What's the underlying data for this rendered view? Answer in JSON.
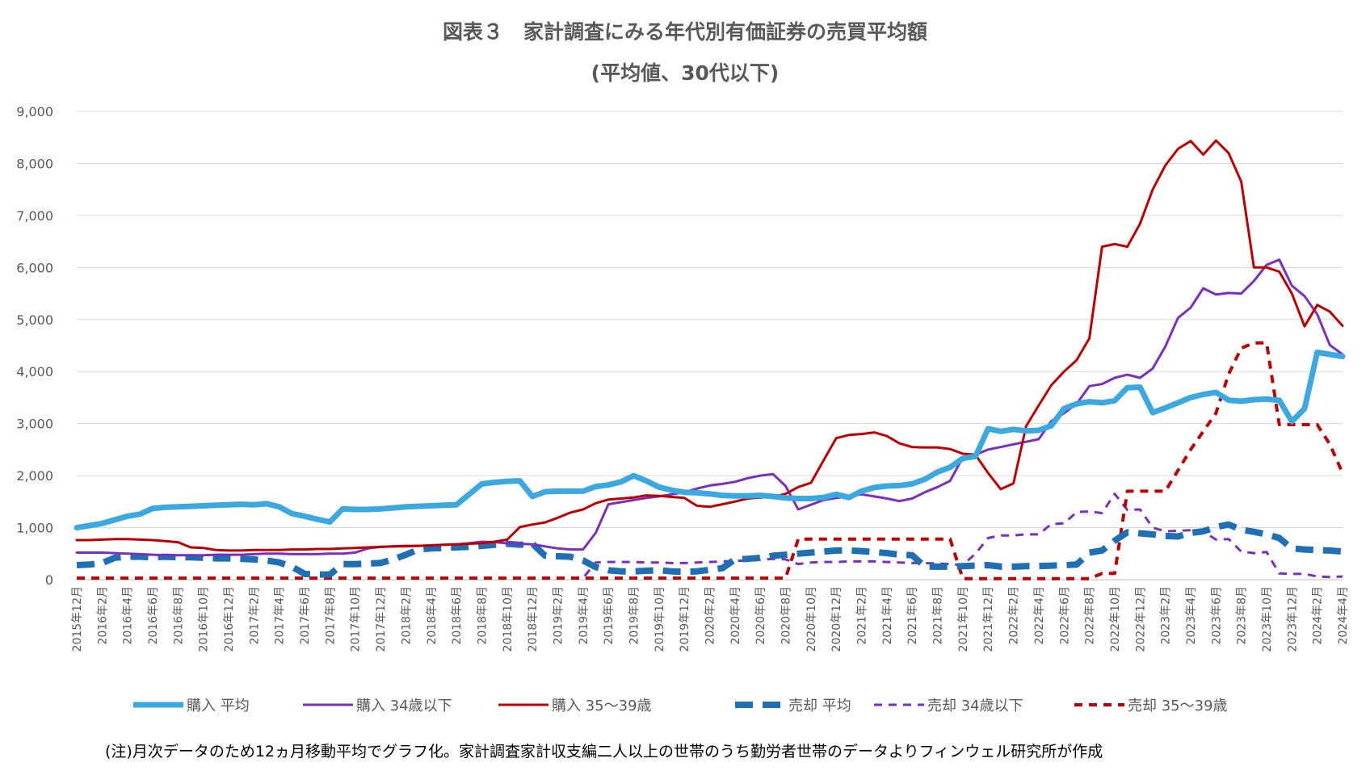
{
  "chart_data": {
    "type": "line",
    "title": "図表３　家計調査にみる年代別有価証券の売買平均額",
    "subtitle": "(平均値、30代以下)",
    "note": "(注)月次データのため12ヵ月移動平均でグラフ化。家計調査家計収支編二人以上の世帯のうち勤労者世帯のデータよりフィンウェル研究所が作成",
    "ylim": [
      0,
      9000
    ],
    "y_ticks": [
      "0",
      "1,000",
      "2,000",
      "3,000",
      "4,000",
      "5,000",
      "6,000",
      "7,000",
      "8,000",
      "9,000"
    ],
    "grid": true,
    "legend_position": "bottom",
    "x_tick_labels": [
      "2015年12月",
      "2016年2月",
      "2016年4月",
      "2016年6月",
      "2016年8月",
      "2016年10月",
      "2016年12月",
      "2017年2月",
      "2017年4月",
      "2017年6月",
      "2017年8月",
      "2017年10月",
      "2017年12月",
      "2018年2月",
      "2018年4月",
      "2018年6月",
      "2018年8月",
      "2018年10月",
      "2018年12月",
      "2019年2月",
      "2019年4月",
      "2019年6月",
      "2019年8月",
      "2019年10月",
      "2019年12月",
      "2020年2月",
      "2020年4月",
      "2020年6月",
      "2020年8月",
      "2020年10月",
      "2020年12月",
      "2021年2月",
      "2021年4月",
      "2021年6月",
      "2021年8月",
      "2021年10月",
      "2021年12月",
      "2022年2月",
      "2022年4月",
      "2022年6月",
      "2022年8月",
      "2022年10月",
      "2022年12月",
      "2023年2月",
      "2023年4月",
      "2023年6月",
      "2023年8月",
      "2023年10月",
      "2023年12月",
      "2024年2月",
      "2024年4月"
    ],
    "x_months_total": 101,
    "series": [
      {
        "name": "購入 平均",
        "color": "#3ba8e0",
        "width": 7,
        "dash": "",
        "values": [
          1000,
          1040,
          1080,
          1150,
          1220,
          1260,
          1370,
          1390,
          1400,
          1410,
          1420,
          1430,
          1440,
          1450,
          1440,
          1460,
          1400,
          1270,
          1220,
          1160,
          1110,
          1360,
          1350,
          1350,
          1360,
          1380,
          1400,
          1410,
          1420,
          1430,
          1440,
          1640,
          1840,
          1870,
          1890,
          1900,
          1600,
          1690,
          1700,
          1700,
          1700,
          1790,
          1820,
          1880,
          2000,
          1900,
          1780,
          1720,
          1680,
          1670,
          1650,
          1620,
          1610,
          1610,
          1620,
          1600,
          1570,
          1560,
          1560,
          1580,
          1640,
          1580,
          1700,
          1770,
          1800,
          1810,
          1840,
          1930,
          2070,
          2160,
          2330,
          2370,
          2900,
          2850,
          2890,
          2860,
          2870,
          2960,
          3290,
          3380,
          3420,
          3400,
          3440,
          3690,
          3700,
          3210,
          3300,
          3400,
          3500,
          3560,
          3600,
          3450,
          3430,
          3460,
          3470,
          3450,
          3040,
          3290,
          4370,
          4330,
          4290
        ]
      },
      {
        "name": "購入 34歳以下",
        "color": "#7b2fbe",
        "width": 3,
        "dash": "",
        "values": [
          520,
          520,
          520,
          510,
          500,
          490,
          480,
          470,
          470,
          470,
          470,
          480,
          480,
          480,
          490,
          500,
          500,
          490,
          490,
          490,
          500,
          500,
          520,
          600,
          630,
          640,
          640,
          650,
          660,
          670,
          680,
          700,
          730,
          720,
          700,
          690,
          680,
          640,
          600,
          580,
          580,
          900,
          1450,
          1490,
          1530,
          1570,
          1600,
          1640,
          1680,
          1750,
          1810,
          1840,
          1880,
          1950,
          2000,
          2030,
          1800,
          1350,
          1440,
          1530,
          1570,
          1600,
          1640,
          1600,
          1560,
          1510,
          1560,
          1680,
          1780,
          1900,
          2350,
          2400,
          2500,
          2550,
          2600,
          2650,
          2700,
          3050,
          3200,
          3380,
          3720,
          3760,
          3880,
          3940,
          3880,
          4060,
          4480,
          5030,
          5230,
          5600,
          5480,
          5510,
          5500,
          5740,
          6050,
          6150,
          5650,
          5450,
          5100,
          4510,
          4330
        ]
      },
      {
        "name": "購入 35～39歳",
        "color": "#c00000",
        "width": 3,
        "dash": "",
        "values": [
          760,
          760,
          770,
          780,
          780,
          770,
          760,
          740,
          720,
          620,
          610,
          570,
          560,
          560,
          570,
          570,
          570,
          580,
          580,
          590,
          590,
          600,
          610,
          620,
          630,
          640,
          650,
          650,
          660,
          670,
          680,
          690,
          700,
          730,
          770,
          1010,
          1060,
          1100,
          1190,
          1290,
          1350,
          1470,
          1540,
          1560,
          1580,
          1620,
          1610,
          1590,
          1570,
          1420,
          1400,
          1450,
          1500,
          1560,
          1580,
          1590,
          1650,
          1780,
          1860,
          2290,
          2720,
          2780,
          2800,
          2830,
          2760,
          2620,
          2550,
          2540,
          2540,
          2510,
          2420,
          2400,
          2050,
          1740,
          1850,
          2950,
          3350,
          3740,
          4000,
          4220,
          4640,
          6400,
          6450,
          6400,
          6840,
          7500,
          7960,
          8280,
          8430,
          8170,
          8440,
          8200,
          7650,
          6000,
          6000,
          5920,
          5500,
          4870,
          5280,
          5150,
          4880
        ]
      },
      {
        "name": "売却 平均",
        "color": "#1f6fb5",
        "width": 8,
        "dash": "22,12",
        "values": [
          280,
          290,
          320,
          420,
          440,
          440,
          430,
          440,
          430,
          430,
          420,
          410,
          410,
          400,
          390,
          370,
          330,
          250,
          110,
          100,
          100,
          300,
          300,
          310,
          320,
          390,
          480,
          580,
          600,
          610,
          620,
          630,
          650,
          670,
          690,
          670,
          690,
          460,
          450,
          440,
          370,
          240,
          180,
          160,
          160,
          170,
          180,
          160,
          150,
          160,
          190,
          220,
          390,
          400,
          420,
          460,
          480,
          500,
          520,
          540,
          560,
          560,
          550,
          530,
          510,
          480,
          470,
          250,
          250,
          250,
          260,
          270,
          280,
          250,
          250,
          260,
          260,
          270,
          280,
          290,
          520,
          560,
          750,
          910,
          890,
          870,
          840,
          830,
          900,
          930,
          1010,
          1060,
          960,
          920,
          870,
          800,
          600,
          580,
          570,
          560,
          540
        ]
      },
      {
        "name": "売却 34歳以下",
        "color": "#7b2fbe",
        "width": 3,
        "dash": "10,8",
        "values": [
          30,
          30,
          30,
          30,
          30,
          30,
          30,
          30,
          30,
          30,
          30,
          30,
          30,
          30,
          30,
          30,
          30,
          30,
          30,
          30,
          30,
          30,
          30,
          30,
          30,
          30,
          30,
          30,
          30,
          30,
          30,
          30,
          30,
          30,
          30,
          30,
          30,
          30,
          30,
          30,
          30,
          330,
          340,
          340,
          340,
          330,
          330,
          320,
          320,
          330,
          340,
          350,
          360,
          370,
          380,
          400,
          390,
          300,
          330,
          340,
          340,
          350,
          350,
          350,
          340,
          330,
          320,
          320,
          310,
          300,
          280,
          500,
          800,
          850,
          850,
          870,
          870,
          1070,
          1080,
          1300,
          1310,
          1280,
          1650,
          1340,
          1350,
          1000,
          930,
          940,
          950,
          930,
          770,
          780,
          540,
          510,
          530,
          120,
          110,
          110,
          60,
          50,
          60
        ]
      },
      {
        "name": "売却 35～39歳",
        "color": "#c00000",
        "width": 4,
        "dash": "10,8",
        "values": [
          30,
          30,
          30,
          30,
          30,
          30,
          30,
          30,
          30,
          30,
          30,
          30,
          30,
          30,
          30,
          30,
          30,
          30,
          30,
          30,
          30,
          30,
          30,
          30,
          30,
          30,
          30,
          30,
          30,
          30,
          30,
          30,
          30,
          30,
          30,
          30,
          30,
          30,
          30,
          30,
          30,
          30,
          30,
          30,
          30,
          30,
          30,
          30,
          30,
          30,
          30,
          30,
          30,
          30,
          30,
          30,
          30,
          780,
          780,
          780,
          780,
          780,
          780,
          780,
          780,
          780,
          780,
          780,
          780,
          780,
          20,
          20,
          20,
          20,
          20,
          20,
          20,
          20,
          20,
          20,
          20,
          120,
          120,
          1700,
          1700,
          1700,
          1700,
          2100,
          2500,
          2850,
          3200,
          3950,
          4450,
          4550,
          4550,
          2980,
          2980,
          2980,
          2980,
          2600,
          2050
        ]
      }
    ]
  }
}
